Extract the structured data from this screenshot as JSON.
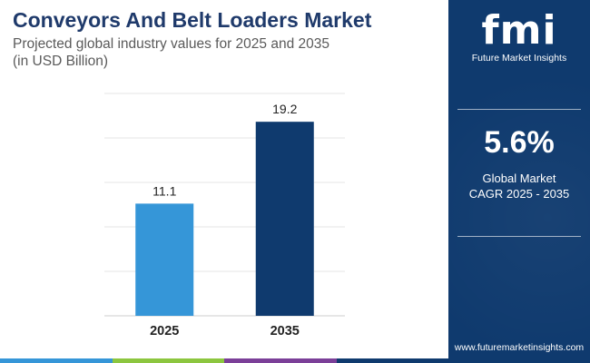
{
  "header": {
    "title": "Conveyors And Belt Loaders Market",
    "subtitle_line1": "Projected global industry values for 2025 and 2035",
    "subtitle_line2": "(in USD Billion)"
  },
  "chart_data": {
    "type": "bar",
    "categories": [
      "2025",
      "2035"
    ],
    "values": [
      11.1,
      19.2
    ],
    "value_labels": [
      "11.1",
      "19.2"
    ],
    "bar_colors": [
      "#3596d8",
      "#0f3a6e"
    ],
    "ylim": [
      0,
      22
    ],
    "grid": true,
    "xlabel": "",
    "ylabel": ""
  },
  "side_panel": {
    "logo_mark": "fmi",
    "logo_text": "Future Market Insights",
    "cagr_value": "5.6%",
    "cagr_label_line1": "Global Market",
    "cagr_label_line2": "CAGR 2025 - 2035",
    "website": "www.futuremarketinsights.com"
  },
  "colors": {
    "panel": "#0f3a6e",
    "title": "#1f3a6b",
    "bottom_bar": [
      "#3596d8",
      "#8cc63f",
      "#7b3f98",
      "#0f3a6e"
    ]
  }
}
